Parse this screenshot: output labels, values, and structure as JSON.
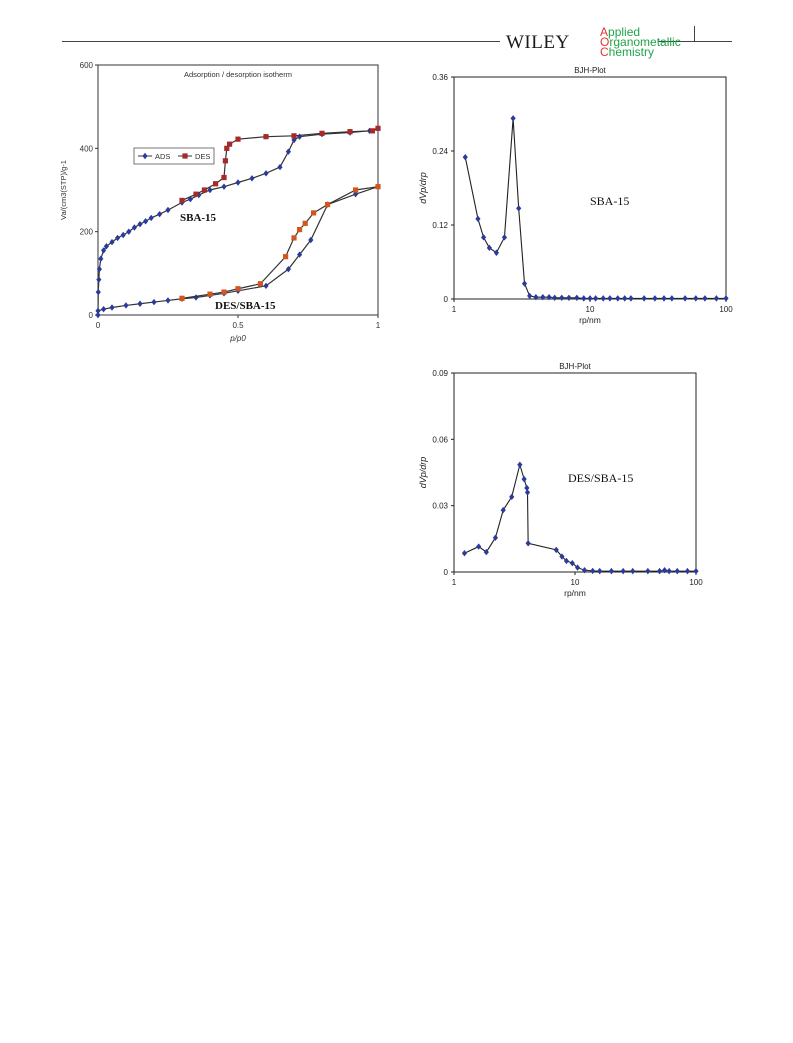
{
  "header": {
    "publisher": "WILEY",
    "journal_lines": [
      "Applied",
      "Organometallic",
      "Chemistry"
    ],
    "accent_color": "#e3342f",
    "journal_color": "#1fa24a"
  },
  "chart_data": [
    {
      "type": "line",
      "title": "Adsorption / desorption isotherm",
      "xlabel": "p/p0",
      "ylabel": "Va/(cm3(STP)/g-1",
      "xlim": [
        0,
        1
      ],
      "ylim": [
        0,
        600
      ],
      "xticks": [
        "0",
        "0.5",
        "1"
      ],
      "yticks": [
        "0",
        "200",
        "400",
        "600"
      ],
      "legend": {
        "placement": "upper-left",
        "entries": [
          "ADS",
          "DES"
        ]
      },
      "annotations": [
        "SBA-15",
        "DES/SBA-15"
      ],
      "series": [
        {
          "name": "ADS",
          "color": "#2b3b9c",
          "marker": "diamond",
          "sample": "SBA-15",
          "x": [
            0.0,
            0.001,
            0.003,
            0.005,
            0.01,
            0.02,
            0.03,
            0.05,
            0.07,
            0.09,
            0.11,
            0.13,
            0.15,
            0.17,
            0.19,
            0.22,
            0.25,
            0.3,
            0.33,
            0.36,
            0.4,
            0.45,
            0.5,
            0.55,
            0.6,
            0.65,
            0.68,
            0.7,
            0.72,
            0.8,
            0.9,
            0.97,
            1.0
          ],
          "y": [
            0,
            55,
            85,
            110,
            135,
            155,
            165,
            175,
            185,
            192,
            200,
            210,
            218,
            225,
            233,
            242,
            252,
            270,
            278,
            288,
            300,
            308,
            318,
            328,
            340,
            355,
            392,
            420,
            428,
            434,
            438,
            442,
            448
          ]
        },
        {
          "name": "DES",
          "color": "#a52a2a",
          "marker": "square",
          "sample": "SBA-15",
          "x": [
            1.0,
            0.98,
            0.9,
            0.8,
            0.7,
            0.6,
            0.5,
            0.47,
            0.46,
            0.455,
            0.45,
            0.42,
            0.38,
            0.35,
            0.3
          ],
          "y": [
            448,
            442,
            440,
            436,
            430,
            428,
            422,
            410,
            400,
            370,
            330,
            315,
            300,
            290,
            275
          ]
        },
        {
          "name": "ADS",
          "color": "#2b3b9c",
          "marker": "diamond",
          "sample": "DES/SBA-15",
          "x": [
            0.0,
            0.02,
            0.05,
            0.1,
            0.15,
            0.2,
            0.25,
            0.3,
            0.35,
            0.4,
            0.45,
            0.5,
            0.6,
            0.68,
            0.72,
            0.76,
            0.82,
            0.92,
            1.0
          ],
          "y": [
            10,
            14,
            18,
            23,
            27,
            31,
            35,
            39,
            42,
            47,
            52,
            58,
            70,
            110,
            145,
            180,
            265,
            290,
            308
          ]
        },
        {
          "name": "DES",
          "color": "#d2551e",
          "marker": "square",
          "sample": "DES/SBA-15",
          "x": [
            1.0,
            0.92,
            0.82,
            0.77,
            0.74,
            0.72,
            0.7,
            0.67,
            0.58,
            0.5,
            0.45,
            0.4,
            0.3
          ],
          "y": [
            308,
            300,
            265,
            245,
            220,
            205,
            185,
            140,
            75,
            63,
            55,
            50,
            40
          ]
        }
      ]
    },
    {
      "type": "line",
      "title": "BJH-Plot",
      "xlabel": "rp/nm",
      "ylabel": "dVp/drp",
      "xscale": "log",
      "xlim": [
        1,
        100
      ],
      "ylim": [
        0,
        0.36
      ],
      "xticks": [
        "1",
        "10",
        "100"
      ],
      "yticks": [
        "0",
        "0.12",
        "0.24",
        "0.36"
      ],
      "annotations": [
        "SBA-15"
      ],
      "series": [
        {
          "color": "#2b3b9c",
          "x": [
            1.21,
            1.5,
            1.65,
            1.82,
            2.05,
            2.35,
            2.72,
            2.99,
            3.3,
            3.6,
            4.0,
            4.5,
            5.0,
            5.5,
            6.2,
            7.0,
            8.0,
            9.0,
            10,
            11,
            12.5,
            14,
            16,
            18,
            20,
            25,
            30,
            35,
            40,
            50,
            60,
            70,
            85,
            100
          ],
          "y": [
            0.23,
            0.13,
            0.1,
            0.083,
            0.075,
            0.1,
            0.293,
            0.147,
            0.025,
            0.005,
            0.003,
            0.003,
            0.003,
            0.002,
            0.002,
            0.002,
            0.002,
            0.001,
            0.001,
            0.001,
            0.001,
            0.001,
            0.001,
            0.001,
            0.001,
            0.001,
            0.001,
            0.001,
            0.001,
            0.001,
            0.001,
            0.001,
            0.001,
            0.001
          ]
        }
      ]
    },
    {
      "type": "line",
      "title": "BJH-Plot",
      "xlabel": "rp/nm",
      "ylabel": "dVp/drp",
      "xscale": "log",
      "xlim": [
        1,
        100
      ],
      "ylim": [
        0,
        0.09
      ],
      "xticks": [
        "1",
        "10",
        "100"
      ],
      "yticks": [
        "0",
        "0.03",
        "0.06",
        "0.09"
      ],
      "annotations": [
        "DES/SBA-15"
      ],
      "series": [
        {
          "color": "#2b3b9c",
          "x": [
            1.22,
            1.6,
            1.85,
            2.2,
            2.55,
            3.0,
            3.5,
            3.8,
            4.0,
            4.05,
            4.1,
            7.0,
            7.8,
            8.5,
            9.5,
            10.5,
            12,
            14,
            16,
            20,
            25,
            30,
            40,
            50,
            55,
            60,
            70,
            85,
            100
          ],
          "y": [
            0.0085,
            0.0115,
            0.009,
            0.0155,
            0.028,
            0.034,
            0.0485,
            0.042,
            0.038,
            0.036,
            0.013,
            0.01,
            0.007,
            0.005,
            0.004,
            0.002,
            0.0008,
            0.0005,
            0.0004,
            0.0004,
            0.0004,
            0.0004,
            0.0004,
            0.0004,
            0.0008,
            0.0004,
            0.0004,
            0.0004,
            0.0004
          ]
        }
      ]
    }
  ]
}
